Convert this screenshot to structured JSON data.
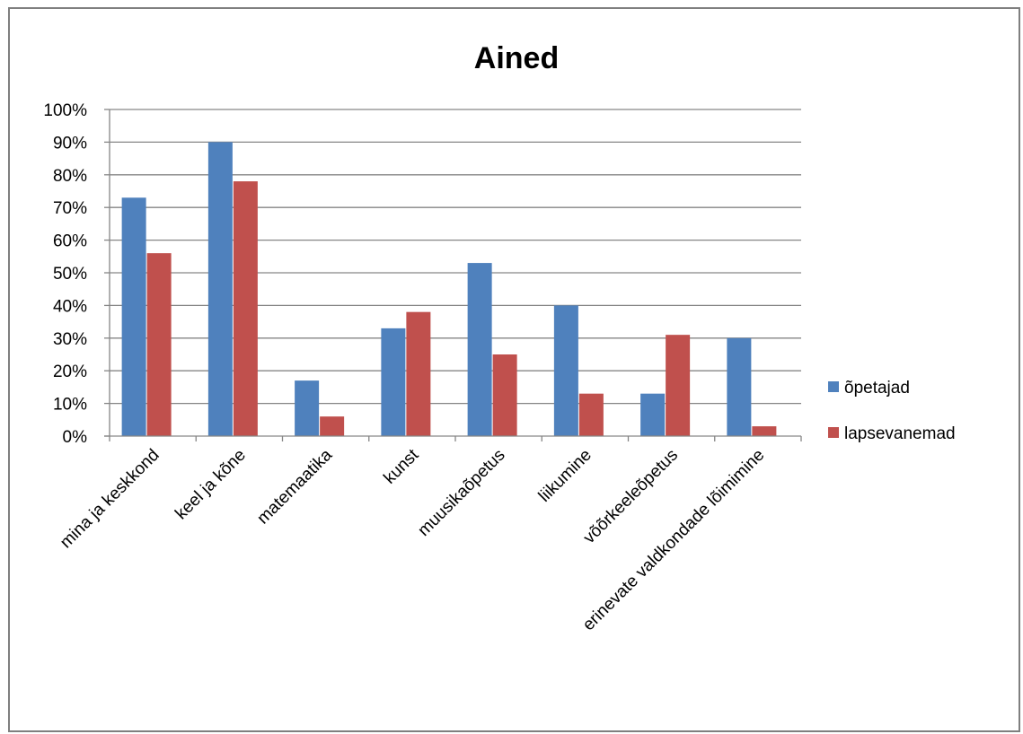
{
  "chart_data": {
    "type": "bar",
    "title": "Ained",
    "xlabel": "",
    "ylabel": "",
    "categories": [
      "mina ja keskkond",
      "keel ja kõne",
      "matemaatika",
      "kunst",
      "muusikaõpetus",
      "liikumine",
      "võõrkeeleõpetus",
      "erinevate valdkondade lõimimine"
    ],
    "series": [
      {
        "name": "õpetajad",
        "color": "#4f81bd",
        "values": [
          73,
          90,
          17,
          33,
          53,
          40,
          13,
          30
        ]
      },
      {
        "name": "lapsevanemad",
        "color": "#c0504d",
        "values": [
          56,
          78,
          6,
          38,
          25,
          13,
          31,
          3
        ]
      }
    ],
    "ylim": [
      0,
      100
    ],
    "yticks": [
      "0%",
      "10%",
      "20%",
      "30%",
      "40%",
      "50%",
      "60%",
      "70%",
      "80%",
      "90%",
      "100%"
    ],
    "grid": true,
    "legend": "right"
  }
}
